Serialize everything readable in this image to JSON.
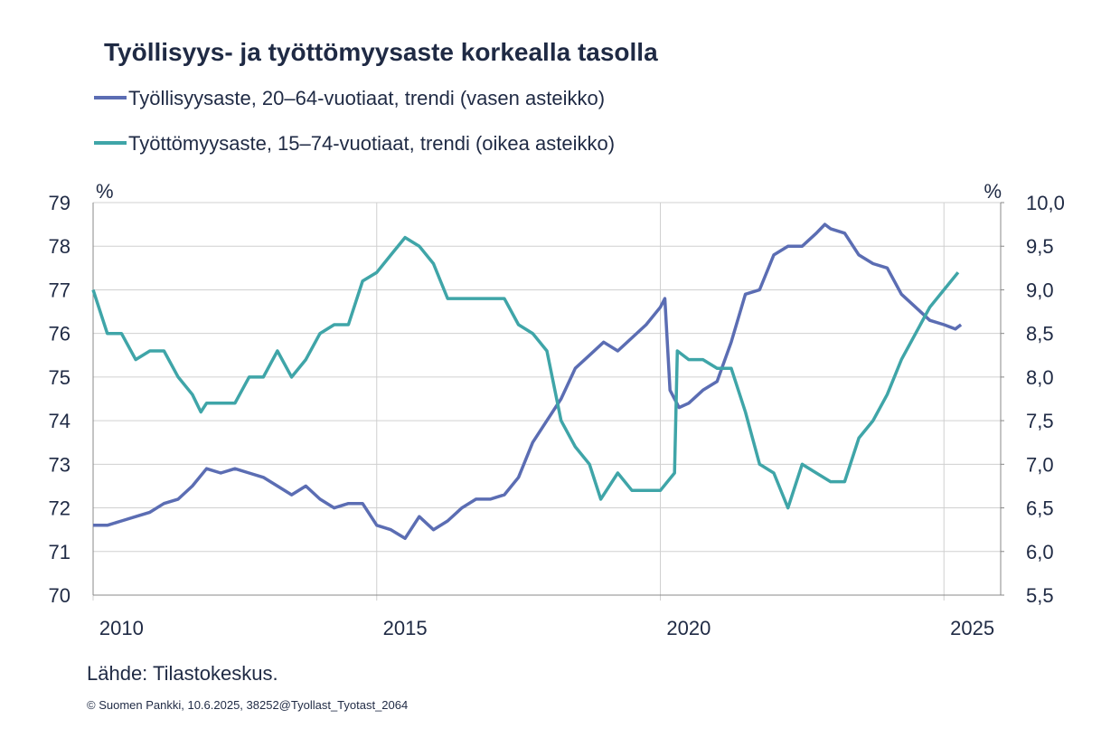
{
  "chart_data": {
    "type": "line",
    "title": "Työllisyys- ja työttömyysaste korkealla tasolla",
    "ylabel": "%",
    "y2label": "%",
    "source": "Lähde: Tilastokeskus.",
    "footer": "© Suomen Pankki, 10.6.2025,  38252@Tyollast_Tyotast_2064",
    "xlim": [
      2010,
      2026
    ],
    "xticks": [
      2010,
      2015,
      2020,
      2025
    ],
    "ylim": [
      70,
      79
    ],
    "yticks": [
      70,
      71,
      72,
      73,
      74,
      75,
      76,
      77,
      78,
      79
    ],
    "y2lim": [
      5.5,
      10
    ],
    "y2ticks": [
      {
        "value": 5.5,
        "label": "5,5"
      },
      {
        "value": 6,
        "label": "6,0"
      },
      {
        "value": 6.5,
        "label": "6,5"
      },
      {
        "value": 7,
        "label": "7,0"
      },
      {
        "value": 7.5,
        "label": "7,5"
      },
      {
        "value": 8,
        "label": "8,0"
      },
      {
        "value": 8.5,
        "label": "8,5"
      },
      {
        "value": 9,
        "label": "9,0"
      },
      {
        "value": 9.5,
        "label": "9,5"
      },
      {
        "value": 10,
        "label": "10,0"
      }
    ],
    "grid": true,
    "series": [
      {
        "name": "Työllisyysaste, 20–64-vuotiaat, trendi (vasen asteikko)",
        "color": "#5b6db3",
        "axis": "y",
        "x": [
          2010,
          2010.25,
          2010.5,
          2010.75,
          2011,
          2011.25,
          2011.5,
          2011.75,
          2012,
          2012.25,
          2012.5,
          2012.75,
          2013,
          2013.25,
          2013.5,
          2013.75,
          2014,
          2014.25,
          2014.5,
          2014.75,
          2015,
          2015.25,
          2015.5,
          2015.75,
          2016,
          2016.25,
          2016.5,
          2016.75,
          2017,
          2017.25,
          2017.5,
          2017.75,
          2018,
          2018.25,
          2018.5,
          2018.75,
          2019,
          2019.25,
          2019.5,
          2019.75,
          2020,
          2020.08,
          2020.17,
          2020.33,
          2020.5,
          2020.75,
          2021,
          2021.25,
          2021.5,
          2021.75,
          2022,
          2022.25,
          2022.5,
          2022.75,
          2022.9,
          2023,
          2023.25,
          2023.5,
          2023.75,
          2024,
          2024.25,
          2024.5,
          2024.75,
          2025,
          2025.2,
          2025.3
        ],
        "values": [
          71.6,
          71.6,
          71.7,
          71.8,
          71.9,
          72.1,
          72.2,
          72.5,
          72.9,
          72.8,
          72.9,
          72.8,
          72.7,
          72.5,
          72.3,
          72.5,
          72.2,
          72.0,
          72.1,
          72.1,
          71.6,
          71.5,
          71.3,
          71.8,
          71.5,
          71.7,
          72.0,
          72.2,
          72.2,
          72.3,
          72.7,
          73.5,
          74.0,
          74.5,
          75.2,
          75.5,
          75.8,
          75.6,
          75.9,
          76.2,
          76.6,
          76.8,
          74.7,
          74.3,
          74.4,
          74.7,
          74.9,
          75.8,
          76.9,
          77.0,
          77.8,
          78.0,
          78.0,
          78.3,
          78.5,
          78.4,
          78.3,
          77.8,
          77.6,
          77.5,
          76.9,
          76.6,
          76.3,
          76.2,
          76.1,
          76.2
        ]
      },
      {
        "name": "Työttömyysaste, 15–74-vuotiaat, trendi (oikea asteikko)",
        "color": "#3fa5a8",
        "axis": "y2",
        "x": [
          2010,
          2010.25,
          2010.5,
          2010.75,
          2011,
          2011.25,
          2011.5,
          2011.75,
          2011.9,
          2012,
          2012.25,
          2012.5,
          2012.75,
          2013,
          2013.25,
          2013.5,
          2013.75,
          2014,
          2014.25,
          2014.5,
          2014.75,
          2015,
          2015.25,
          2015.5,
          2015.75,
          2016,
          2016.25,
          2016.5,
          2016.75,
          2017,
          2017.25,
          2017.5,
          2017.75,
          2018,
          2018.25,
          2018.5,
          2018.75,
          2018.95,
          2019.25,
          2019.5,
          2019.75,
          2020,
          2020.25,
          2020.3,
          2020.5,
          2020.75,
          2021,
          2021.25,
          2021.5,
          2021.75,
          2022,
          2022.25,
          2022.5,
          2022.75,
          2023,
          2023.25,
          2023.5,
          2023.75,
          2024,
          2024.25,
          2024.5,
          2024.75,
          2025,
          2025.25
        ],
        "values": [
          9.0,
          8.5,
          8.5,
          8.2,
          8.3,
          8.3,
          8.0,
          7.8,
          7.6,
          7.7,
          7.7,
          7.7,
          8.0,
          8.0,
          8.3,
          8.0,
          8.2,
          8.5,
          8.6,
          8.6,
          9.1,
          9.2,
          9.4,
          9.6,
          9.5,
          9.3,
          8.9,
          8.9,
          8.9,
          8.9,
          8.9,
          8.6,
          8.5,
          8.3,
          7.5,
          7.2,
          7.0,
          6.6,
          6.9,
          6.7,
          6.7,
          6.7,
          6.9,
          8.3,
          8.2,
          8.2,
          8.1,
          8.1,
          7.6,
          7.0,
          6.9,
          6.5,
          7.0,
          6.9,
          6.8,
          6.8,
          7.3,
          7.5,
          7.8,
          8.2,
          8.5,
          8.8,
          9.0,
          9.2
        ]
      }
    ]
  }
}
